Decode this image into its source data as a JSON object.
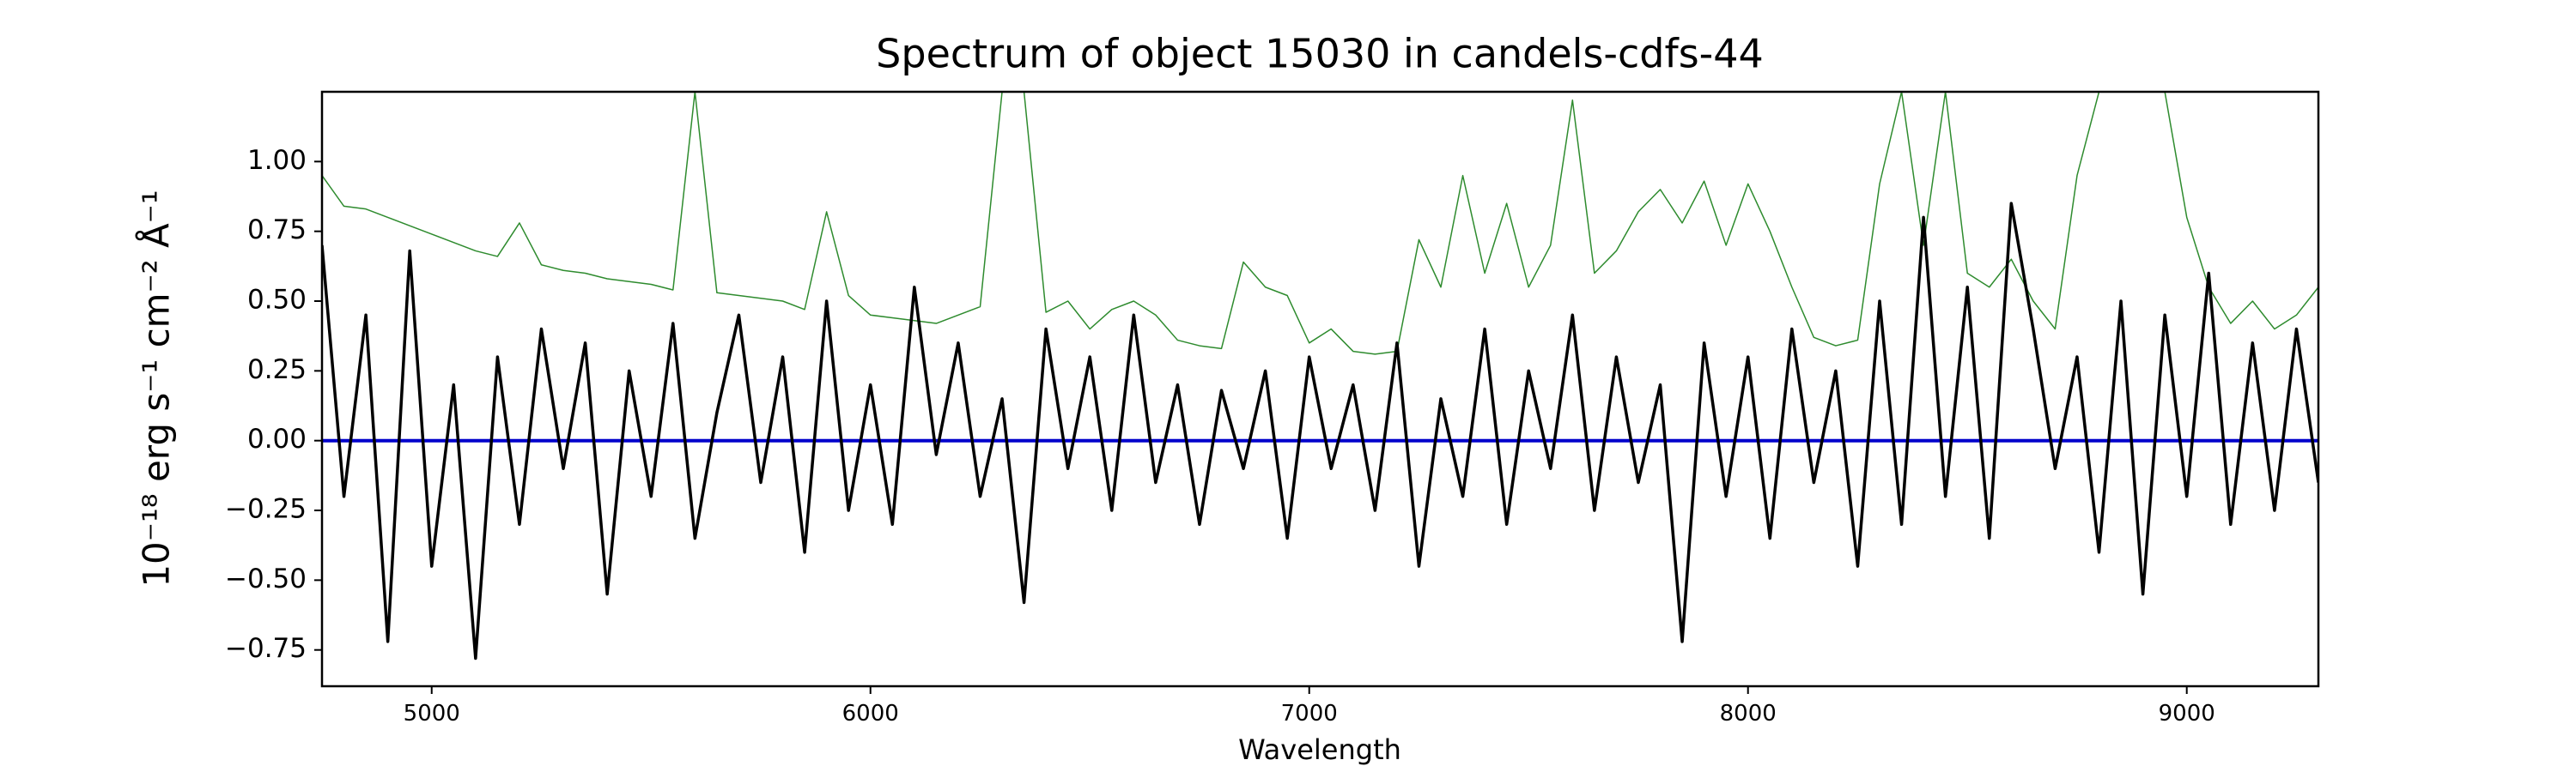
{
  "chart_data": {
    "type": "line",
    "title": "Spectrum of object 15030 in candels-cdfs-44",
    "xlabel": "Wavelength",
    "ylabel": "10⁻¹⁸ erg s⁻¹ cm⁻² Å⁻¹",
    "xlim": [
      4750,
      9300
    ],
    "ylim": [
      -0.88,
      1.25
    ],
    "xticks": [
      5000,
      6000,
      7000,
      8000,
      9000
    ],
    "yticks": [
      {
        "value": -0.75,
        "label": "−0.75"
      },
      {
        "value": -0.5,
        "label": "−0.50"
      },
      {
        "value": -0.25,
        "label": "−0.25"
      },
      {
        "value": 0,
        "label": "0.00"
      },
      {
        "value": 0.25,
        "label": "0.25"
      },
      {
        "value": 0.5,
        "label": "0.50"
      },
      {
        "value": 0.75,
        "label": "0.75"
      },
      {
        "value": 1,
        "label": "1.00"
      }
    ],
    "series": [
      {
        "color": "#2e8b2e",
        "x": [
          4750,
          4800,
          4850,
          4900,
          4950,
          5000,
          5050,
          5100,
          5150,
          5200,
          5250,
          5300,
          5350,
          5400,
          5450,
          5500,
          5550,
          5600,
          5650,
          5700,
          5750,
          5800,
          5850,
          5900,
          5950,
          6000,
          6050,
          6100,
          6150,
          6200,
          6250,
          6300,
          6350,
          6400,
          6450,
          6500,
          6550,
          6600,
          6650,
          6700,
          6750,
          6800,
          6850,
          6900,
          6950,
          7000,
          7050,
          7100,
          7150,
          7200,
          7250,
          7300,
          7350,
          7400,
          7450,
          7500,
          7550,
          7600,
          7650,
          7700,
          7750,
          7800,
          7850,
          7900,
          7950,
          8000,
          8050,
          8100,
          8150,
          8200,
          8250,
          8300,
          8350,
          8400,
          8450,
          8500,
          8550,
          8600,
          8650,
          8700,
          8750,
          8800,
          8850,
          8900,
          8950,
          9000,
          9050,
          9100,
          9150,
          9200,
          9250,
          9300
        ],
        "values": [
          0.95,
          0.84,
          0.83,
          0.8,
          0.77,
          0.74,
          0.71,
          0.68,
          0.66,
          0.78,
          0.63,
          0.61,
          0.6,
          0.58,
          0.57,
          0.56,
          0.54,
          1.25,
          0.53,
          0.52,
          0.51,
          0.5,
          0.47,
          0.82,
          0.52,
          0.45,
          0.44,
          0.43,
          0.42,
          0.45,
          0.48,
          1.25,
          1.25,
          0.46,
          0.5,
          0.4,
          0.47,
          0.5,
          0.45,
          0.36,
          0.34,
          0.33,
          0.64,
          0.55,
          0.52,
          0.35,
          0.4,
          0.32,
          0.31,
          0.32,
          0.72,
          0.55,
          0.95,
          0.6,
          0.85,
          0.55,
          0.7,
          1.22,
          0.6,
          0.68,
          0.82,
          0.9,
          0.78,
          0.93,
          0.7,
          0.92,
          0.75,
          0.55,
          0.37,
          0.34,
          0.36,
          0.92,
          1.25,
          0.7,
          1.25,
          0.6,
          0.55,
          0.65,
          0.5,
          0.4,
          0.95,
          1.25,
          1.25,
          1.25,
          1.25,
          0.8,
          0.55,
          0.42,
          0.5,
          0.4,
          0.45,
          0.55
        ],
        "width": 1.5
      },
      {
        "color": "#0000cc",
        "x": [
          4750,
          9300
        ],
        "values": [
          0,
          0
        ],
        "width": 4
      },
      {
        "color": "#000000",
        "x": [
          4750,
          4800,
          4850,
          4900,
          4950,
          5000,
          5050,
          5100,
          5150,
          5200,
          5250,
          5300,
          5350,
          5400,
          5450,
          5500,
          5550,
          5600,
          5650,
          5700,
          5750,
          5800,
          5850,
          5900,
          5950,
          6000,
          6050,
          6100,
          6150,
          6200,
          6250,
          6300,
          6350,
          6400,
          6450,
          6500,
          6550,
          6600,
          6650,
          6700,
          6750,
          6800,
          6850,
          6900,
          6950,
          7000,
          7050,
          7100,
          7150,
          7200,
          7250,
          7300,
          7350,
          7400,
          7450,
          7500,
          7550,
          7600,
          7650,
          7700,
          7750,
          7800,
          7850,
          7900,
          7950,
          8000,
          8050,
          8100,
          8150,
          8200,
          8250,
          8300,
          8350,
          8400,
          8450,
          8500,
          8550,
          8600,
          8650,
          8700,
          8750,
          8800,
          8850,
          8900,
          8950,
          9000,
          9050,
          9100,
          9150,
          9200,
          9250,
          9300
        ],
        "values": [
          0.7,
          -0.2,
          0.45,
          -0.72,
          0.68,
          -0.45,
          0.2,
          -0.78,
          0.3,
          -0.3,
          0.4,
          -0.1,
          0.35,
          -0.55,
          0.25,
          -0.2,
          0.42,
          -0.35,
          0.1,
          0.45,
          -0.15,
          0.3,
          -0.4,
          0.5,
          -0.25,
          0.2,
          -0.3,
          0.55,
          -0.05,
          0.35,
          -0.2,
          0.15,
          -0.58,
          0.4,
          -0.1,
          0.3,
          -0.25,
          0.45,
          -0.15,
          0.2,
          -0.3,
          0.18,
          -0.1,
          0.25,
          -0.35,
          0.3,
          -0.1,
          0.2,
          -0.25,
          0.35,
          -0.45,
          0.15,
          -0.2,
          0.4,
          -0.3,
          0.25,
          -0.1,
          0.45,
          -0.25,
          0.3,
          -0.15,
          0.2,
          -0.72,
          0.35,
          -0.2,
          0.3,
          -0.35,
          0.4,
          -0.15,
          0.25,
          -0.45,
          0.5,
          -0.3,
          0.8,
          -0.2,
          0.55,
          -0.35,
          0.85,
          0.4,
          -0.1,
          0.3,
          -0.4,
          0.5,
          -0.55,
          0.45,
          -0.2,
          0.6,
          -0.3,
          0.35,
          -0.25,
          0.4,
          -0.15
        ],
        "width": 3.5
      }
    ]
  }
}
